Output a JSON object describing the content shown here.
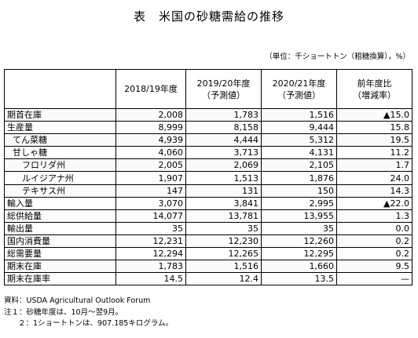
{
  "title": "表　米国の砂糖需給の推移",
  "unit_note": "（単位：千ショートトン（粗糖換算），%）",
  "table": {
    "headers": [
      {
        "line1": "2018/19年度",
        "line2": ""
      },
      {
        "line1": "2019/20年度",
        "line2": "（予測値）"
      },
      {
        "line1": "2020/21年度",
        "line2": "（予測値）"
      },
      {
        "line1": "前年度比",
        "line2": "（増減率）"
      }
    ],
    "rows": [
      {
        "label": "期首在庫",
        "indent": 0,
        "values": [
          "2,008",
          "1,783",
          "1,516",
          "▲15.0"
        ]
      },
      {
        "label": "生産量",
        "indent": 0,
        "values": [
          "8,999",
          "8,158",
          "9,444",
          "15.8"
        ]
      },
      {
        "label": "てん菜糖",
        "indent": 1,
        "values": [
          "4,939",
          "4,444",
          "5,312",
          "19.5"
        ]
      },
      {
        "label": "甘しゃ糖",
        "indent": 1,
        "values": [
          "4,060",
          "3,713",
          "4,131",
          "11.2"
        ]
      },
      {
        "label": "フロリダ州",
        "indent": 2,
        "values": [
          "2,005",
          "2,069",
          "2,105",
          "1.7"
        ]
      },
      {
        "label": "ルイジアナ州",
        "indent": 2,
        "values": [
          "1,907",
          "1,513",
          "1,876",
          "24.0"
        ]
      },
      {
        "label": "テキサス州",
        "indent": 2,
        "values": [
          "147",
          "131",
          "150",
          "14.3"
        ]
      },
      {
        "label": "輸入量",
        "indent": 0,
        "values": [
          "3,070",
          "3,841",
          "2,995",
          "▲22.0"
        ]
      },
      {
        "label": "総供給量",
        "indent": 0,
        "values": [
          "14,077",
          "13,781",
          "13,955",
          "1.3"
        ]
      },
      {
        "label": "輸出量",
        "indent": 0,
        "values": [
          "35",
          "35",
          "35",
          "0.0"
        ]
      },
      {
        "label": "国内消費量",
        "indent": 0,
        "values": [
          "12,231",
          "12,230",
          "12,260",
          "0.2"
        ]
      },
      {
        "label": "総需要量",
        "indent": 0,
        "values": [
          "12,294",
          "12,265",
          "12,295",
          "0.2"
        ]
      },
      {
        "label": "期末在庫",
        "indent": 0,
        "values": [
          "1,783",
          "1,516",
          "1,660",
          "9.5"
        ]
      },
      {
        "label": "期末在庫率",
        "indent": 0,
        "values": [
          "14.5",
          "12.4",
          "13.5",
          "—"
        ]
      }
    ]
  },
  "notes": {
    "source": "資料：USDA Agricultural Outlook Forum",
    "note1": "注１：砂糖年度は、10月～翌9月。",
    "note2": "２：1ショートトンは、907.185キログラム。"
  }
}
